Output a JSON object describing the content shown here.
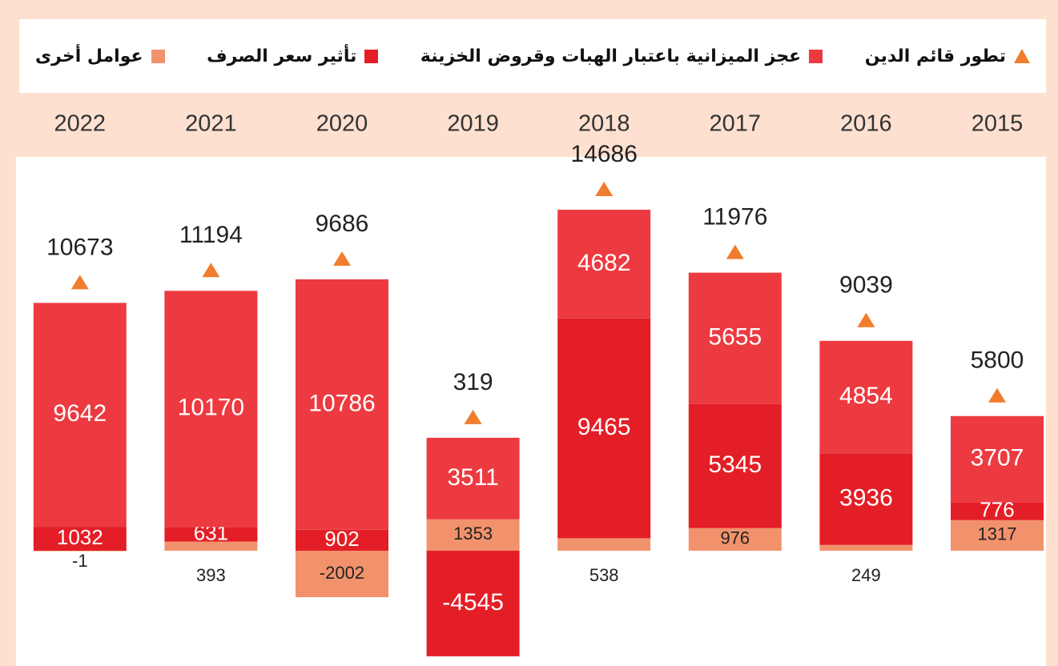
{
  "chart_data": {
    "type": "bar",
    "categories": [
      "2015",
      "2016",
      "2017",
      "2018",
      "2019",
      "2020",
      "2021",
      "2022"
    ],
    "series": [
      {
        "name": "تطور قائم الدين",
        "type": "scatter",
        "color": "#f07d2e",
        "values": [
          5800,
          9039,
          11976,
          14686,
          319,
          9686,
          11194,
          10673
        ]
      },
      {
        "name": "عجز الميزانية باعتبار الهبات وقروض الخزينة",
        "type": "bar",
        "color": "#ec3a40",
        "values": [
          3707,
          4854,
          5655,
          4682,
          3511,
          10786,
          10170,
          9642
        ]
      },
      {
        "name": "تأثير سعر الصرف",
        "type": "bar",
        "color": "#e41e26",
        "values": [
          776,
          3936,
          5345,
          9465,
          -4545,
          902,
          631,
          1032
        ]
      },
      {
        "name": "عوامل أخرى",
        "type": "bar",
        "color": "#f2926d",
        "values": [
          1317,
          249,
          976,
          538,
          1353,
          -2002,
          393,
          -1
        ]
      }
    ]
  }
}
